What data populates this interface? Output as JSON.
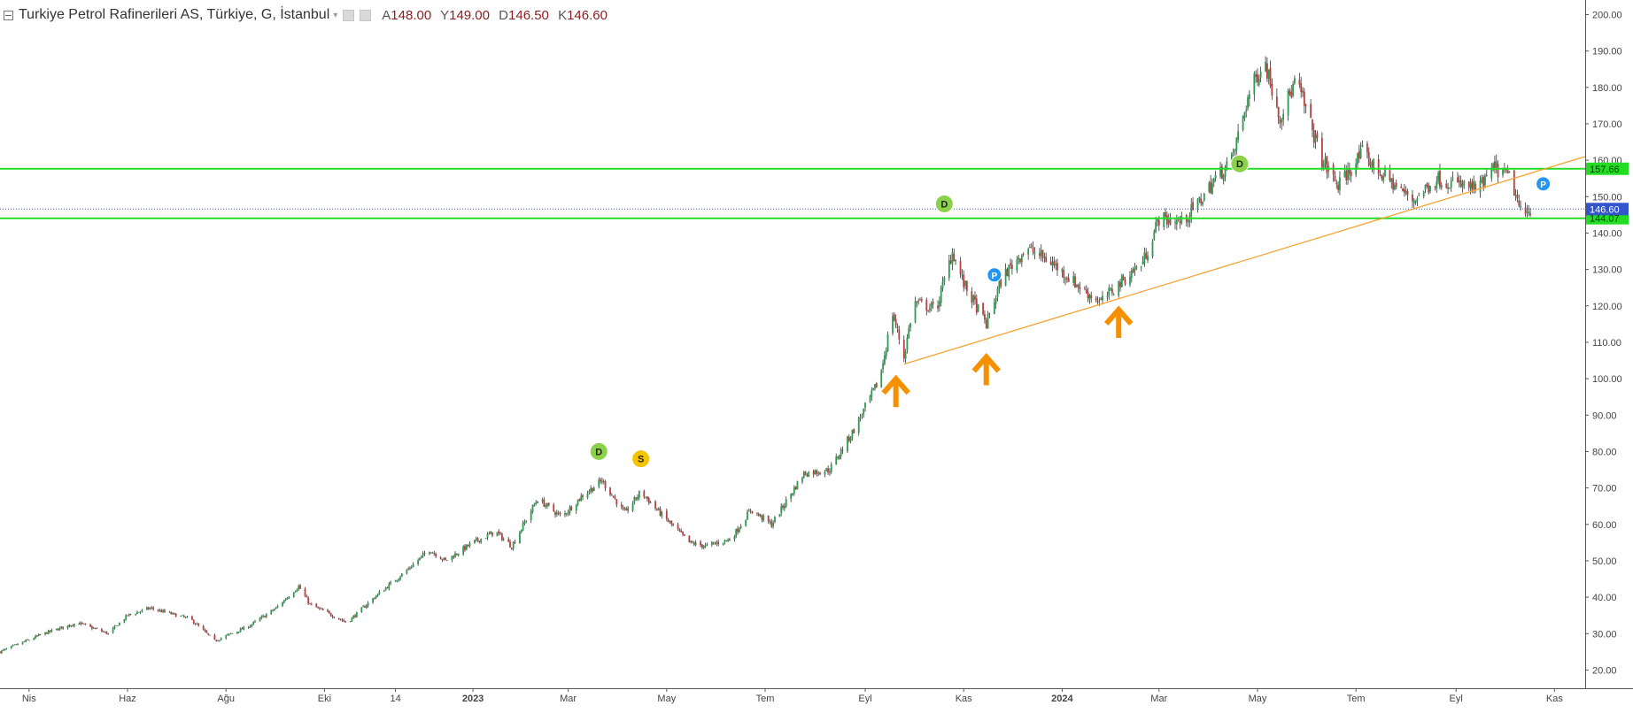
{
  "legend": {
    "title": "Turkiye Petrol Rafinerileri AS, Türkiye, G, İstanbul",
    "ohlc": [
      {
        "key": "A",
        "value": "148.00"
      },
      {
        "key": "Y",
        "value": "149.00"
      },
      {
        "key": "D",
        "value": "146.50"
      },
      {
        "key": "K",
        "value": "146.60"
      }
    ]
  },
  "colors": {
    "up": "#2e9a4f",
    "down": "#b54040",
    "wick": "#333333",
    "support": "#22dd22",
    "trend": "#f5a331",
    "arrow": "#f59100",
    "current": "#3355cc",
    "marker_green": "#8bd24a",
    "marker_yellow": "#f5c400",
    "marker_blue": "#2196f3"
  },
  "chart_data": {
    "type": "candlestick",
    "y_axis": {
      "min": 15,
      "max": 204,
      "ticks": [
        "20.00",
        "30.00",
        "40.00",
        "50.00",
        "60.00",
        "70.00",
        "80.00",
        "90.00",
        "100.00",
        "110.00",
        "120.00",
        "130.00",
        "140.00",
        "150.00",
        "160.00",
        "170.00",
        "180.00",
        "190.00",
        "200.00"
      ],
      "position": "right"
    },
    "x_axis": {
      "start": "2022-03-14",
      "end": "2024-11-20",
      "ticks": [
        {
          "label": "Nis",
          "date": "2022-04-01",
          "bold": false
        },
        {
          "label": "Haz",
          "date": "2022-06-01",
          "bold": false
        },
        {
          "label": "Ağu",
          "date": "2022-08-01",
          "bold": false
        },
        {
          "label": "Eki",
          "date": "2022-10-01",
          "bold": false
        },
        {
          "label": "14",
          "date": "2022-11-14",
          "bold": false
        },
        {
          "label": "2023",
          "date": "2023-01-01",
          "bold": true
        },
        {
          "label": "Mar",
          "date": "2023-03-01",
          "bold": false
        },
        {
          "label": "May",
          "date": "2023-05-01",
          "bold": false
        },
        {
          "label": "Tem",
          "date": "2023-07-01",
          "bold": false
        },
        {
          "label": "Eyl",
          "date": "2023-09-01",
          "bold": false
        },
        {
          "label": "Kas",
          "date": "2023-11-01",
          "bold": false
        },
        {
          "label": "2024",
          "date": "2024-01-01",
          "bold": true
        },
        {
          "label": "Mar",
          "date": "2024-03-01",
          "bold": false
        },
        {
          "label": "May",
          "date": "2024-05-01",
          "bold": false
        },
        {
          "label": "Tem",
          "date": "2024-07-01",
          "bold": false
        },
        {
          "label": "Eyl",
          "date": "2024-09-01",
          "bold": false
        },
        {
          "label": "Kas",
          "date": "2024-11-01",
          "bold": false
        }
      ]
    },
    "price_path": [
      [
        "2022-03-14",
        25
      ],
      [
        "2022-04-10",
        30
      ],
      [
        "2022-05-01",
        33
      ],
      [
        "2022-05-20",
        30
      ],
      [
        "2022-06-01",
        35
      ],
      [
        "2022-06-15",
        37
      ],
      [
        "2022-07-10",
        34
      ],
      [
        "2022-07-25",
        28
      ],
      [
        "2022-08-15",
        32
      ],
      [
        "2022-09-01",
        37
      ],
      [
        "2022-09-15",
        43
      ],
      [
        "2022-09-22",
        38
      ],
      [
        "2022-10-15",
        33
      ],
      [
        "2022-11-01",
        40
      ],
      [
        "2022-11-20",
        47
      ],
      [
        "2022-12-05",
        53
      ],
      [
        "2022-12-15",
        50
      ],
      [
        "2023-01-01",
        55
      ],
      [
        "2023-01-15",
        58
      ],
      [
        "2023-01-25",
        54
      ],
      [
        "2023-02-10",
        67
      ],
      [
        "2023-02-25",
        62
      ],
      [
        "2023-03-10",
        68
      ],
      [
        "2023-03-22",
        72
      ],
      [
        "2023-04-05",
        63
      ],
      [
        "2023-04-15",
        69
      ],
      [
        "2023-04-25",
        64
      ],
      [
        "2023-05-15",
        55
      ],
      [
        "2023-05-25",
        54
      ],
      [
        "2023-06-10",
        56
      ],
      [
        "2023-06-22",
        64
      ],
      [
        "2023-07-05",
        60
      ],
      [
        "2023-07-25",
        74
      ],
      [
        "2023-08-10",
        75
      ],
      [
        "2023-08-25",
        86
      ],
      [
        "2023-09-10",
        100
      ],
      [
        "2023-09-18",
        118
      ],
      [
        "2023-09-25",
        106
      ],
      [
        "2023-10-01",
        121
      ],
      [
        "2023-10-15",
        119
      ],
      [
        "2023-10-25",
        135
      ],
      [
        "2023-11-01",
        126
      ],
      [
        "2023-11-15",
        115
      ],
      [
        "2023-11-25",
        128
      ],
      [
        "2023-12-10",
        136
      ],
      [
        "2023-12-25",
        132
      ],
      [
        "2024-01-15",
        124
      ],
      [
        "2024-01-25",
        121
      ],
      [
        "2024-02-05",
        126
      ],
      [
        "2024-02-20",
        132
      ],
      [
        "2024-03-01",
        144
      ],
      [
        "2024-03-15",
        143
      ],
      [
        "2024-03-25",
        148
      ],
      [
        "2024-04-05",
        155
      ],
      [
        "2024-04-15",
        160
      ],
      [
        "2024-04-25",
        177
      ],
      [
        "2024-05-05",
        188
      ],
      [
        "2024-05-15",
        172
      ],
      [
        "2024-05-25",
        182
      ],
      [
        "2024-06-10",
        160
      ],
      [
        "2024-06-20",
        153
      ],
      [
        "2024-07-05",
        162
      ],
      [
        "2024-07-15",
        157
      ],
      [
        "2024-08-05",
        149
      ],
      [
        "2024-08-20",
        155
      ],
      [
        "2024-09-05",
        153
      ],
      [
        "2024-09-15",
        152
      ],
      [
        "2024-09-25",
        158
      ],
      [
        "2024-10-05",
        155
      ],
      [
        "2024-10-12",
        144
      ],
      [
        "2024-10-17",
        146.6
      ]
    ],
    "horizontal_lines": [
      {
        "name": "resistance",
        "value": 157.66,
        "label": "157.66"
      },
      {
        "name": "support",
        "value": 144.07,
        "label": "144.07"
      }
    ],
    "current_price": {
      "value": 146.6,
      "label": "146.60"
    },
    "trendline": {
      "start": [
        "2023-09-25",
        104
      ],
      "end": [
        "2024-11-20",
        161
      ]
    },
    "markers": [
      {
        "label": "D",
        "date": "2023-03-20",
        "value": 80,
        "color": "marker_green"
      },
      {
        "label": "S",
        "date": "2023-04-15",
        "value": 78,
        "color": "marker_yellow"
      },
      {
        "label": "D",
        "date": "2023-10-20",
        "value": 148,
        "color": "marker_green"
      },
      {
        "label": "P",
        "date": "2023-11-20",
        "value": 128.5,
        "color": "marker_blue"
      },
      {
        "label": "D",
        "date": "2024-04-20",
        "value": 159,
        "color": "marker_green"
      },
      {
        "label": "P",
        "date": "2024-10-25",
        "value": 153.5,
        "color": "marker_blue"
      }
    ],
    "arrows": [
      {
        "date": "2023-09-20",
        "value": 99
      },
      {
        "date": "2023-11-15",
        "value": 105
      },
      {
        "date": "2024-02-05",
        "value": 118
      }
    ],
    "grid": false,
    "legend": "top-left"
  }
}
